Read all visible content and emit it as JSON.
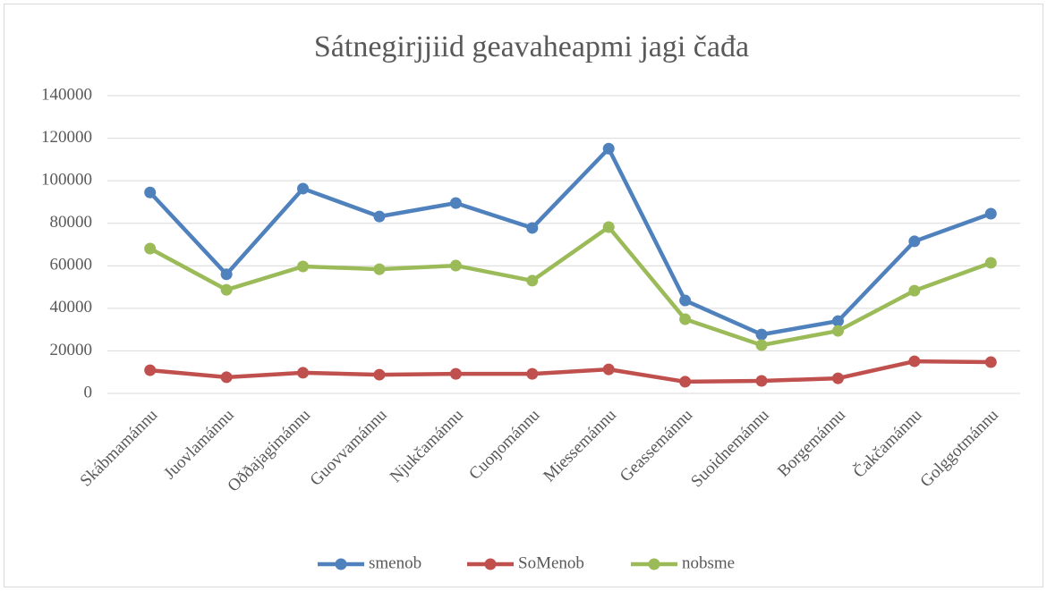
{
  "chart_data": {
    "type": "line",
    "title": "Sátnegirjjiid geavaheapmi jagi čađa",
    "categories": [
      "Skábmamánnu",
      "Juovlamánnu",
      "Oððajagimánnu",
      "Guovvamánnu",
      "Njukčamánnu",
      "Cuoŋománnu",
      "Miessemánnu",
      "Geassemánnu",
      "Suoidnemánnu",
      "Borgemánnu",
      "Čakčamánnu",
      "Golggotmánnu"
    ],
    "series": [
      {
        "name": "smenob",
        "color": "#4f81bd",
        "values": [
          94500,
          56000,
          96300,
          83200,
          89500,
          77800,
          115100,
          43700,
          27700,
          34000,
          71500,
          84500
        ]
      },
      {
        "name": "SoMenob",
        "color": "#c0504d",
        "values": [
          10900,
          7600,
          9700,
          8800,
          9200,
          9200,
          11300,
          5500,
          5900,
          7100,
          15100,
          14700
        ]
      },
      {
        "name": "nobsme",
        "color": "#9bbb59",
        "values": [
          68100,
          48700,
          59700,
          58400,
          60100,
          53000,
          78200,
          34900,
          22700,
          29400,
          48300,
          61400
        ]
      }
    ],
    "ylim": [
      0,
      140000
    ],
    "yticks": [
      0,
      20000,
      40000,
      60000,
      80000,
      100000,
      120000,
      140000
    ],
    "grid": true,
    "legend": "bottom"
  }
}
